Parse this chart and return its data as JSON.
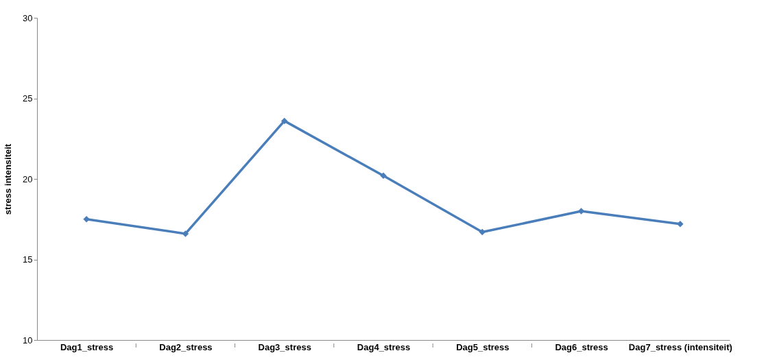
{
  "chart_data": {
    "type": "line",
    "ylabel": "stress intensiteit",
    "categories": [
      "Dag1_stress",
      "Dag2_stress",
      "Dag3_stress",
      "Dag4_stress",
      "Dag5_stress",
      "Dag6_stress",
      "Dag7_stress (intensiteit)"
    ],
    "series": [
      {
        "color": "#4a7ebb",
        "values": [
          17.5,
          16.6,
          23.6,
          20.2,
          16.7,
          18.0,
          17.2
        ]
      }
    ],
    "ylim": [
      10,
      30
    ],
    "yticks": [
      10,
      15,
      20,
      25,
      30
    ],
    "grid": false,
    "legend": false,
    "marker": "diamond",
    "line_style": "solid"
  }
}
